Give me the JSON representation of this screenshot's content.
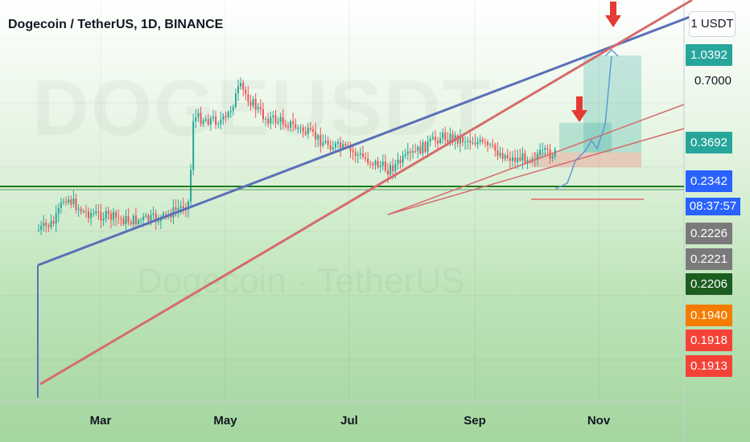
{
  "header": {
    "title": "Dogecoin / TetherUS, 1D, BINANCE",
    "scale_label": "1 USDT"
  },
  "watermark": {
    "symbol": "DOGEUSDT",
    "name": "Dogecoin · TetherUS"
  },
  "colors": {
    "up": "#26a69a",
    "down": "#ef5350",
    "blue_trend": "#5b6fb8",
    "red_trend": "#d66b6b",
    "projection": "#5b9bd5",
    "arrow": "#e53935",
    "target_zone": "#26a69a",
    "stop_zone": "#ef5350",
    "support": "#1e7b1e"
  },
  "price_axis": {
    "ticks": [
      {
        "label": "0.7000",
        "value": 0.7
      }
    ],
    "badges": [
      {
        "label": "1.0392",
        "value": 1.0392,
        "color": "#26a69a"
      },
      {
        "label": "0.3692",
        "value": 0.3692,
        "color": "#26a69a"
      },
      {
        "label": "0.2342",
        "value": 0.2342,
        "color": "#2962ff"
      },
      {
        "label": "0.2226",
        "value": 0.2226,
        "color": "#7a7a7a"
      },
      {
        "label": "0.2221",
        "value": 0.2221,
        "color": "#7a7a7a"
      },
      {
        "label": "0.2206",
        "value": 0.2206,
        "color": "#1b5e20"
      },
      {
        "label": "0.1940",
        "value": 0.194,
        "color": "#f57c00"
      },
      {
        "label": "0.1918",
        "value": 0.1918,
        "color": "#f44336"
      },
      {
        "label": "0.1913",
        "value": 0.1913,
        "color": "#f44336"
      }
    ],
    "countdown": "08:37:57"
  },
  "time_axis": {
    "labels": [
      "Mar",
      "May",
      "Jul",
      "Sep",
      "Nov"
    ]
  },
  "chart_data": {
    "type": "candlestick",
    "title": "Dogecoin / TetherUS, 1D, BINANCE",
    "y_scale": "log",
    "y_unit": "USDT",
    "current_price": 0.2342,
    "series": [
      {
        "name": "DOGEUSDT",
        "approx_close_path": [
          {
            "x": "Feb 01",
            "y": 0.07
          },
          {
            "x": "Feb 10",
            "y": 0.08
          },
          {
            "x": "Feb 15",
            "y": 0.12
          },
          {
            "x": "Feb 24",
            "y": 0.094
          },
          {
            "x": "Mar 15",
            "y": 0.082
          },
          {
            "x": "Apr 01",
            "y": 0.085
          },
          {
            "x": "Apr 14",
            "y": 0.11
          },
          {
            "x": "Apr 16",
            "y": 0.4
          },
          {
            "x": "May 01",
            "y": 0.38
          },
          {
            "x": "May 08",
            "y": 0.64
          },
          {
            "x": "May 20",
            "y": 0.4
          },
          {
            "x": "Jun 01",
            "y": 0.37
          },
          {
            "x": "Jun 20",
            "y": 0.27
          },
          {
            "x": "Jul 01",
            "y": 0.24
          },
          {
            "x": "Jul 20",
            "y": 0.18
          },
          {
            "x": "Aug 15",
            "y": 0.3
          },
          {
            "x": "Sep 01",
            "y": 0.28
          },
          {
            "x": "Sep 20",
            "y": 0.21
          },
          {
            "x": "Oct 05",
            "y": 0.23
          }
        ]
      }
    ],
    "projection": [
      {
        "x": "Oct 10",
        "y": 0.2342
      },
      {
        "x": "Oct 20",
        "y": 0.29
      },
      {
        "x": "Oct 27",
        "y": 0.33
      },
      {
        "x": "Nov 05",
        "y": 1.0392
      }
    ],
    "position": {
      "entry": 0.2342,
      "targets": [
        0.3692,
        1.0392
      ],
      "stop": 0.1913
    },
    "x_ticks": [
      "Mar",
      "May",
      "Jul",
      "Sep",
      "Nov"
    ],
    "y_ticks": [
      0.7
    ]
  }
}
